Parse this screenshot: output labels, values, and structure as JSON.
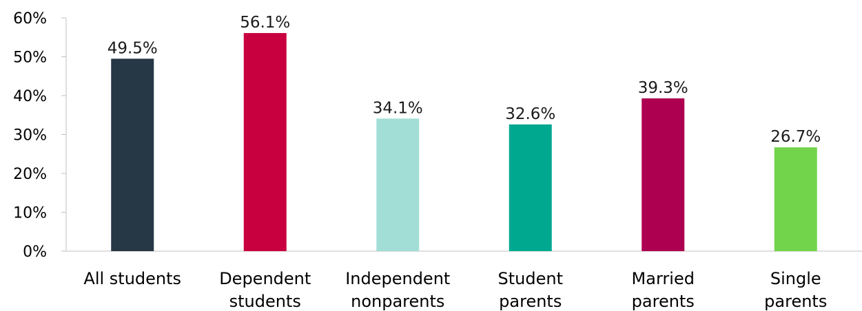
{
  "chart_data": {
    "type": "bar",
    "categories": [
      [
        "All students"
      ],
      [
        "Dependent",
        "students"
      ],
      [
        "Independent",
        "nonparents"
      ],
      [
        "Student",
        "parents"
      ],
      [
        "Married",
        "parents"
      ],
      [
        "Single",
        "parents"
      ]
    ],
    "values": [
      49.5,
      56.1,
      34.1,
      32.6,
      39.3,
      26.7
    ],
    "value_labels": [
      "49.5%",
      "56.1%",
      "34.1%",
      "32.6%",
      "39.3%",
      "26.7%"
    ],
    "colors": [
      "#263746",
      "#c8003f",
      "#a3ded6",
      "#00a88f",
      "#ad0050",
      "#72d44a"
    ],
    "ylim": [
      0,
      60
    ],
    "yticks": [
      0,
      10,
      20,
      30,
      40,
      50,
      60
    ],
    "ytick_labels": [
      "0%",
      "10%",
      "20%",
      "30%",
      "40%",
      "50%",
      "60%"
    ],
    "grid": false,
    "axis_color": "#bfbfbf",
    "title": "",
    "xlabel": "",
    "ylabel": ""
  }
}
